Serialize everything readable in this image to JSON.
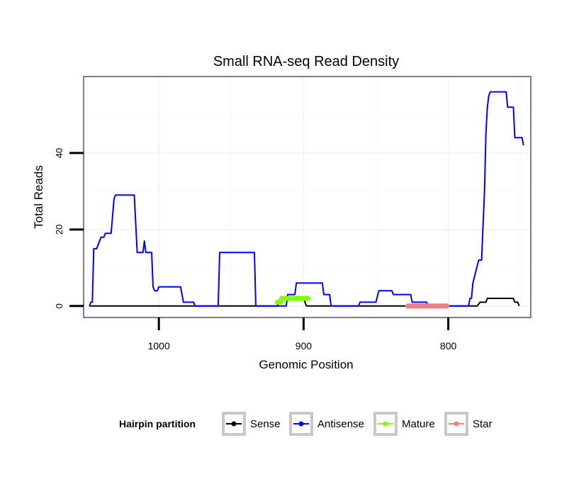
{
  "chart_data": {
    "type": "line",
    "title": "Small RNA-seq Read Density",
    "xlabel": "Genomic Position",
    "ylabel": "Total Reads",
    "x_reversed": true,
    "xlim": [
      1052,
      743
    ],
    "ylim": [
      -3,
      60
    ],
    "x_ticks": [
      1000,
      900,
      800
    ],
    "y_ticks": [
      0,
      20,
      40
    ],
    "grid": true,
    "legend_title": "Hairpin partition",
    "legend_position": "bottom",
    "series": [
      {
        "name": "Sense",
        "color": "#000000",
        "kind": "line",
        "points": [
          [
            1048,
            0
          ],
          [
            918,
            0
          ],
          [
            917,
            1
          ],
          [
            916,
            2
          ],
          [
            914,
            2
          ],
          [
            900,
            2
          ],
          [
            899,
            1
          ],
          [
            898,
            0
          ],
          [
            780,
            0
          ],
          [
            778,
            1
          ],
          [
            774,
            1
          ],
          [
            773,
            2
          ],
          [
            755,
            2
          ],
          [
            754,
            1
          ],
          [
            752,
            1
          ],
          [
            751,
            0
          ]
        ]
      },
      {
        "name": "Antisense",
        "color": "#0000ff",
        "kind": "line",
        "points": [
          [
            1048,
            0
          ],
          [
            1047,
            1
          ],
          [
            1046,
            1
          ],
          [
            1045,
            15
          ],
          [
            1043,
            15
          ],
          [
            1041,
            17
          ],
          [
            1040,
            18
          ],
          [
            1038,
            18
          ],
          [
            1037,
            19
          ],
          [
            1033,
            19
          ],
          [
            1031,
            28
          ],
          [
            1030,
            29
          ],
          [
            1017,
            29
          ],
          [
            1015,
            14
          ],
          [
            1011,
            14
          ],
          [
            1010,
            17
          ],
          [
            1009,
            14
          ],
          [
            1005,
            14
          ],
          [
            1004,
            5
          ],
          [
            1003,
            4
          ],
          [
            1001,
            4
          ],
          [
            1000,
            5
          ],
          [
            985,
            5
          ],
          [
            983,
            1
          ],
          [
            976,
            1
          ],
          [
            975,
            0
          ],
          [
            959,
            0
          ],
          [
            958,
            14
          ],
          [
            934,
            14
          ],
          [
            933,
            0
          ],
          [
            912,
            0
          ],
          [
            911,
            3
          ],
          [
            906,
            3
          ],
          [
            905,
            6
          ],
          [
            887,
            6
          ],
          [
            886,
            3
          ],
          [
            882,
            3
          ],
          [
            881,
            0
          ],
          [
            862,
            0
          ],
          [
            861,
            1
          ],
          [
            850,
            1
          ],
          [
            848,
            4
          ],
          [
            839,
            4
          ],
          [
            838,
            3
          ],
          [
            826,
            3
          ],
          [
            825,
            1
          ],
          [
            815,
            1
          ],
          [
            814,
            0
          ],
          [
            786,
            0
          ],
          [
            785,
            2
          ],
          [
            784,
            2
          ],
          [
            783,
            6
          ],
          [
            781,
            9
          ],
          [
            779,
            12
          ],
          [
            777,
            12
          ],
          [
            775,
            30
          ],
          [
            774,
            45
          ],
          [
            773,
            52
          ],
          [
            772,
            55
          ],
          [
            771,
            56
          ],
          [
            760,
            56
          ],
          [
            759,
            52
          ],
          [
            755,
            52
          ],
          [
            754,
            44
          ],
          [
            749,
            44
          ],
          [
            748,
            42
          ]
        ]
      },
      {
        "name": "Mature",
        "color": "#7fff00",
        "kind": "thick",
        "points": [
          [
            918,
            1
          ],
          [
            916,
            1
          ],
          [
            915,
            2
          ],
          [
            897,
            2
          ]
        ]
      },
      {
        "name": "Star",
        "color": "#f08080",
        "kind": "thick",
        "points": [
          [
            828,
            0
          ],
          [
            801,
            0
          ]
        ]
      }
    ]
  }
}
